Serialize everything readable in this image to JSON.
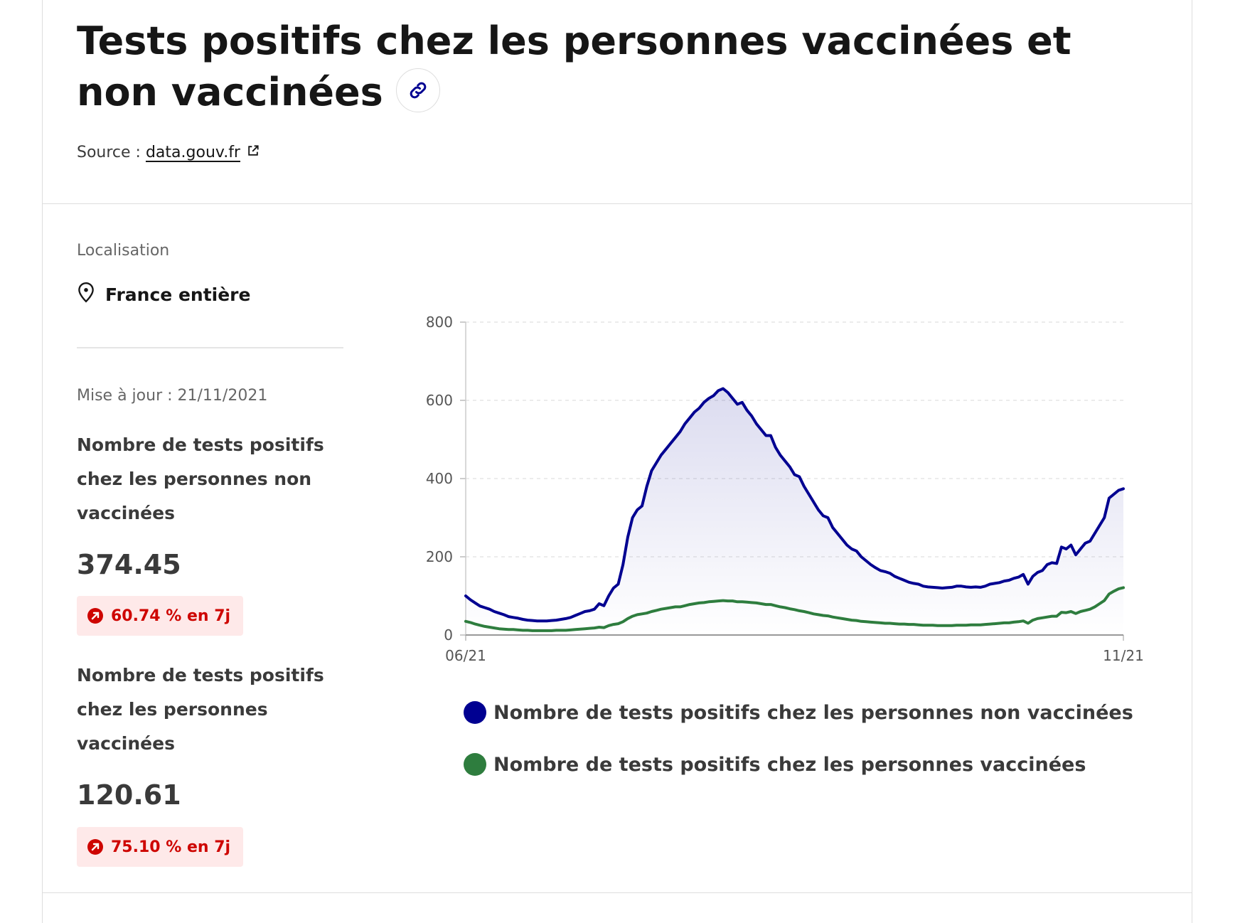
{
  "header": {
    "title": "Tests positifs chez les personnes vaccinées et non vaccinées",
    "source_label": "Source :",
    "source_link": "data.gouv.fr"
  },
  "sidebar": {
    "location_label": "Localisation",
    "location_value": "France entière",
    "update_text": "Mise à jour : 21/11/2021",
    "kpis": [
      {
        "label": "Nombre de tests positifs chez les personnes non vaccinées",
        "value": "374.45",
        "change": "60.74 % en 7j"
      },
      {
        "label": "Nombre de tests positifs chez les personnes vaccinées",
        "value": "120.61",
        "change": "75.10 % en 7j"
      }
    ]
  },
  "colors": {
    "unvaccinated": "#000091",
    "vaccinated": "#2e7d3e",
    "badge_text": "#ce0500",
    "badge_bg": "#fee9e9"
  },
  "icons": {
    "link": "link-icon",
    "external": "external-link-icon",
    "location": "map-pin-icon",
    "trend": "arrow-up-right-icon"
  },
  "chart_data": {
    "type": "line",
    "x_tick_labels": [
      "06/21",
      "11/21"
    ],
    "y_ticks": [
      0,
      200,
      400,
      600,
      800
    ],
    "ylim": [
      0,
      800
    ],
    "grid": "horizontal dashed",
    "legend_position": "bottom",
    "series": [
      {
        "name": "Nombre de tests positifs chez les personnes non vaccinées",
        "color": "#000091",
        "fill": true,
        "values": [
          100,
          90,
          82,
          74,
          70,
          66,
          60,
          56,
          52,
          47,
          45,
          43,
          40,
          38,
          37,
          36,
          36,
          36,
          37,
          38,
          40,
          42,
          45,
          50,
          55,
          60,
          62,
          66,
          80,
          75,
          100,
          120,
          130,
          180,
          250,
          300,
          320,
          330,
          380,
          420,
          440,
          460,
          475,
          490,
          505,
          520,
          540,
          555,
          570,
          580,
          595,
          605,
          612,
          625,
          630,
          620,
          605,
          590,
          595,
          575,
          560,
          540,
          525,
          510,
          510,
          480,
          460,
          445,
          430,
          410,
          405,
          380,
          360,
          340,
          320,
          305,
          300,
          275,
          260,
          245,
          230,
          220,
          215,
          200,
          190,
          180,
          172,
          165,
          162,
          158,
          150,
          145,
          140,
          135,
          132,
          130,
          125,
          123,
          122,
          121,
          120,
          121,
          122,
          125,
          125,
          123,
          122,
          123,
          122,
          125,
          130,
          132,
          134,
          138,
          140,
          145,
          148,
          155,
          130,
          150,
          160,
          165,
          180,
          185,
          183,
          225,
          220,
          230,
          205,
          220,
          235,
          240,
          260,
          280,
          300,
          350,
          360,
          370,
          374
        ]
      },
      {
        "name": "Nombre de tests positifs chez les personnes vaccinées",
        "color": "#2e7d3e",
        "fill": false,
        "values": [
          35,
          32,
          28,
          25,
          22,
          20,
          18,
          16,
          15,
          14,
          14,
          13,
          12,
          12,
          11,
          11,
          11,
          11,
          11,
          12,
          12,
          12,
          13,
          14,
          15,
          16,
          17,
          18,
          20,
          19,
          24,
          27,
          29,
          34,
          42,
          48,
          52,
          54,
          56,
          60,
          63,
          66,
          68,
          70,
          72,
          72,
          75,
          78,
          80,
          82,
          83,
          85,
          86,
          87,
          88,
          87,
          87,
          85,
          85,
          84,
          83,
          82,
          80,
          78,
          78,
          75,
          72,
          70,
          67,
          65,
          62,
          60,
          57,
          54,
          52,
          50,
          49,
          46,
          44,
          42,
          40,
          38,
          37,
          35,
          34,
          33,
          32,
          31,
          30,
          30,
          29,
          28,
          28,
          27,
          27,
          26,
          25,
          25,
          25,
          24,
          24,
          24,
          24,
          25,
          25,
          25,
          26,
          26,
          26,
          27,
          28,
          29,
          30,
          31,
          31,
          33,
          34,
          36,
          30,
          38,
          42,
          44,
          46,
          48,
          48,
          58,
          57,
          60,
          55,
          60,
          63,
          66,
          72,
          80,
          88,
          105,
          112,
          118,
          121
        ]
      }
    ]
  }
}
